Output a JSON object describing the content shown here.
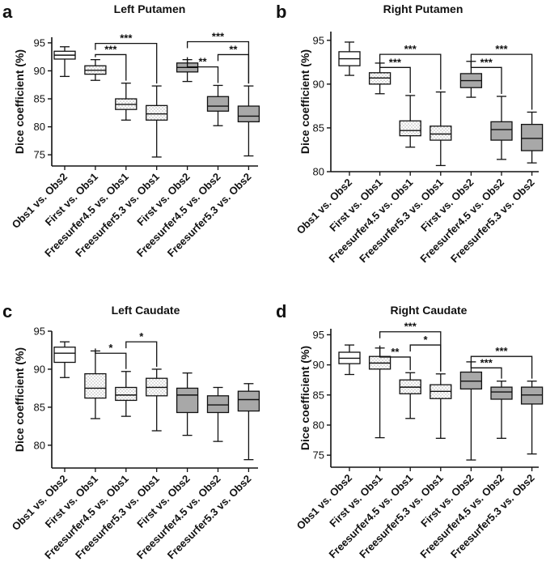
{
  "colors": {
    "obs": "#ffffff",
    "first": "#ececec",
    "dotted": "#f5f5f5",
    "obs2_fill": "#a8a8a8",
    "stroke": "#111111"
  },
  "chart_data": [
    {
      "panel": "a",
      "type": "boxplot",
      "title": "Left Putamen",
      "ylabel": "Dice coefficient (%)",
      "ylim": [
        73,
        96
      ],
      "yticks": [
        75,
        80,
        85,
        90,
        95
      ],
      "categories": [
        "Obs1 vs. Obs2",
        "First vs. Obs1",
        "Freesurfer4.5 vs. Obs1",
        "Freesurfer5.3 vs. Obs1",
        "First vs. Obs2",
        "Freesurfer4.5 vs. Obs2",
        "Freesurfer5.3 vs. Obs2"
      ],
      "fills": [
        "white",
        "dots",
        "dots",
        "dots",
        "gray",
        "gray",
        "gray"
      ],
      "boxes": [
        {
          "min": 89.0,
          "q1": 92.1,
          "median": 92.8,
          "q3": 93.5,
          "max": 94.3
        },
        {
          "min": 88.3,
          "q1": 89.4,
          "median": 90.1,
          "q3": 90.9,
          "max": 92.0
        },
        {
          "min": 81.2,
          "q1": 83.1,
          "median": 84.0,
          "q3": 85.0,
          "max": 87.8
        },
        {
          "min": 74.6,
          "q1": 81.2,
          "median": 82.3,
          "q3": 83.8,
          "max": 87.3
        },
        {
          "min": 88.1,
          "q1": 89.8,
          "median": 90.6,
          "q3": 91.4,
          "max": 92.0
        },
        {
          "min": 80.2,
          "q1": 82.8,
          "median": 83.7,
          "q3": 85.4,
          "max": 87.4
        },
        {
          "min": 74.8,
          "q1": 80.9,
          "median": 81.9,
          "q3": 83.7,
          "max": 87.3
        }
      ],
      "significance": [
        {
          "from": 1,
          "to": 3,
          "label": "***",
          "y": 94.9
        },
        {
          "from": 1,
          "to": 2,
          "label": "***",
          "y": 92.9
        },
        {
          "from": 4,
          "to": 6,
          "label": "***",
          "y": 95.2
        },
        {
          "from": 4,
          "to": 5,
          "label": "**",
          "y": 90.7
        },
        {
          "from": 5,
          "to": 6,
          "label": "**",
          "y": 92.9
        }
      ]
    },
    {
      "panel": "b",
      "type": "boxplot",
      "title": "Right Putamen",
      "ylabel": "Dice coefficient (%)",
      "ylim": [
        80,
        96
      ],
      "yticks": [
        80,
        85,
        90,
        95
      ],
      "categories": [
        "Obs1 vs. Obs2",
        "First vs. Obs1",
        "Freesurfer4.5 vs. Obs1",
        "Freesurfer5.3 vs. Obs1",
        "First vs. Obs2",
        "Freesurfer4.5 vs. Obs2",
        "Freesurfer5.3 vs. Obs2"
      ],
      "fills": [
        "white",
        "dots",
        "dots",
        "dots",
        "gray",
        "gray",
        "gray"
      ],
      "boxes": [
        {
          "min": 91.0,
          "q1": 92.1,
          "median": 92.9,
          "q3": 93.7,
          "max": 94.8
        },
        {
          "min": 88.9,
          "q1": 90.0,
          "median": 90.7,
          "q3": 91.3,
          "max": 92.4
        },
        {
          "min": 82.8,
          "q1": 84.1,
          "median": 84.7,
          "q3": 85.8,
          "max": 88.7
        },
        {
          "min": 80.7,
          "q1": 83.6,
          "median": 84.3,
          "q3": 85.2,
          "max": 89.1
        },
        {
          "min": 88.5,
          "q1": 89.6,
          "median": 90.4,
          "q3": 91.2,
          "max": 92.6
        },
        {
          "min": 81.4,
          "q1": 83.6,
          "median": 84.8,
          "q3": 85.7,
          "max": 88.6
        },
        {
          "min": 81.0,
          "q1": 82.4,
          "median": 83.8,
          "q3": 85.4,
          "max": 86.8
        }
      ],
      "significance": [
        {
          "from": 1,
          "to": 3,
          "label": "***",
          "y": 93.4
        },
        {
          "from": 1,
          "to": 2,
          "label": "***",
          "y": 91.9
        },
        {
          "from": 4,
          "to": 6,
          "label": "***",
          "y": 93.4
        },
        {
          "from": 4,
          "to": 5,
          "label": "***",
          "y": 91.9
        }
      ]
    },
    {
      "panel": "c",
      "type": "boxplot",
      "title": "Left Caudate",
      "ylabel": "Dice coefficient (%)",
      "ylim": [
        77,
        95
      ],
      "yticks": [
        80,
        85,
        90,
        95
      ],
      "categories": [
        "Obs1 vs. Obs2",
        "First vs. Obs1",
        "Freesurfer4.5 vs. Obs1",
        "Freesurfer5.3 vs. Obs1",
        "First vs. Obs2",
        "Freesurfer4.5 vs. Obs2",
        "Freesurfer5.3 vs. Obs2"
      ],
      "fills": [
        "white",
        "dots",
        "dots",
        "dots",
        "gray",
        "gray",
        "gray"
      ],
      "boxes": [
        {
          "min": 88.9,
          "q1": 90.9,
          "median": 92.1,
          "q3": 92.9,
          "max": 93.6
        },
        {
          "min": 83.5,
          "q1": 86.2,
          "median": 87.5,
          "q3": 89.4,
          "max": 92.4
        },
        {
          "min": 83.8,
          "q1": 85.9,
          "median": 86.6,
          "q3": 87.6,
          "max": 89.7
        },
        {
          "min": 81.9,
          "q1": 86.5,
          "median": 87.6,
          "q3": 88.8,
          "max": 90.0
        },
        {
          "min": 81.3,
          "q1": 84.3,
          "median": 86.6,
          "q3": 87.5,
          "max": 89.5
        },
        {
          "min": 80.5,
          "q1": 84.3,
          "median": 85.3,
          "q3": 86.5,
          "max": 87.6
        },
        {
          "min": 78.1,
          "q1": 84.5,
          "median": 86.0,
          "q3": 87.1,
          "max": 88.1
        }
      ],
      "significance": [
        {
          "from": 1,
          "to": 2,
          "label": "*",
          "y": 92.1
        },
        {
          "from": 2,
          "to": 3,
          "label": "*",
          "y": 93.6
        }
      ]
    },
    {
      "panel": "d",
      "type": "boxplot",
      "title": "Right Caudate",
      "ylabel": "Dice coefficient (%)",
      "ylim": [
        73,
        96
      ],
      "yticks": [
        75,
        80,
        85,
        90,
        95
      ],
      "categories": [
        "Obs1 vs. Obs2",
        "First vs. Obs1",
        "Freesurfer4.5 vs. Obs1",
        "Freesurfer5.3 vs. Obs1",
        "First vs. Obs2",
        "Freesurfer4.5 vs. Obs2",
        "Freesurfer5.3 vs. Obs2"
      ],
      "fills": [
        "white",
        "dots",
        "dots",
        "dots",
        "gray",
        "gray",
        "gray"
      ],
      "boxes": [
        {
          "min": 88.4,
          "q1": 90.2,
          "median": 91.1,
          "q3": 92.1,
          "max": 93.3
        },
        {
          "min": 77.9,
          "q1": 89.3,
          "median": 90.3,
          "q3": 91.4,
          "max": 92.8
        },
        {
          "min": 81.1,
          "q1": 85.2,
          "median": 86.3,
          "q3": 87.5,
          "max": 88.7
        },
        {
          "min": 77.8,
          "q1": 84.4,
          "median": 85.6,
          "q3": 86.7,
          "max": 88.5
        },
        {
          "min": 74.2,
          "q1": 86.0,
          "median": 87.3,
          "q3": 88.8,
          "max": 90.5
        },
        {
          "min": 77.8,
          "q1": 84.3,
          "median": 85.5,
          "q3": 86.3,
          "max": 87.3
        },
        {
          "min": 75.2,
          "q1": 83.5,
          "median": 85.0,
          "q3": 86.3,
          "max": 87.3
        }
      ],
      "significance": [
        {
          "from": 1,
          "to": 3,
          "label": "***",
          "y": 95.5
        },
        {
          "from": 1,
          "to": 2,
          "label": "**",
          "y": 91.3
        },
        {
          "from": 2,
          "to": 3,
          "label": "*",
          "y": 93.3
        },
        {
          "from": 4,
          "to": 6,
          "label": "***",
          "y": 91.4
        },
        {
          "from": 4,
          "to": 5,
          "label": "***",
          "y": 89.5
        }
      ]
    }
  ]
}
